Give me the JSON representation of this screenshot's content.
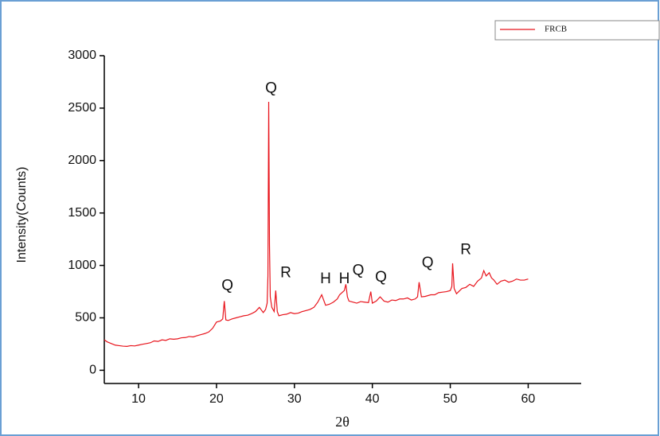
{
  "chart_data": {
    "type": "line",
    "x_label": "2θ",
    "y_label": "Intensity(Counts)",
    "x": [
      5.6,
      6,
      6.5,
      7,
      7.5,
      8,
      8.5,
      9,
      9.5,
      10,
      10.5,
      11,
      11.5,
      12,
      12.5,
      13,
      13.5,
      14,
      14.5,
      15,
      15.5,
      16,
      16.5,
      17,
      17.5,
      18,
      18.5,
      19,
      19.5,
      20,
      20.5,
      20.8,
      21,
      21.2,
      21.5,
      22,
      22.5,
      23,
      23.5,
      24,
      24.5,
      25,
      25.5,
      26,
      26.3,
      26.5,
      26.6,
      26.7,
      26.8,
      26.9,
      27.1,
      27.4,
      27.6,
      27.8,
      28,
      28.5,
      29,
      29.5,
      30,
      30.5,
      31,
      31.5,
      32,
      32.5,
      33,
      33.5,
      34,
      34.5,
      35,
      35.5,
      35.8,
      36.1,
      36.4,
      36.6,
      36.8,
      37,
      37.5,
      38,
      38.5,
      39,
      39.5,
      39.8,
      40,
      40.5,
      41,
      41.5,
      42,
      42.5,
      43,
      43.5,
      44,
      44.5,
      45,
      45.5,
      45.8,
      46,
      46.3,
      46.8,
      47.5,
      48,
      48.5,
      49,
      49.5,
      50,
      50.2,
      50.3,
      50.5,
      50.8,
      51.5,
      52,
      52.5,
      53,
      53.5,
      54,
      54.3,
      54.6,
      55,
      55.3,
      55.6,
      56,
      56.5,
      57,
      57.5,
      58,
      58.5,
      59,
      59.5,
      60
    ],
    "series": [
      {
        "name": "FRCB",
        "color": "#e8141c",
        "values": [
          290,
          270,
          255,
          240,
          235,
          230,
          228,
          235,
          232,
          240,
          248,
          255,
          262,
          280,
          275,
          290,
          285,
          300,
          296,
          300,
          310,
          312,
          322,
          318,
          330,
          340,
          350,
          365,
          400,
          460,
          470,
          490,
          660,
          480,
          475,
          490,
          500,
          510,
          520,
          525,
          540,
          560,
          600,
          550,
          580,
          640,
          900,
          2560,
          1200,
          700,
          600,
          560,
          760,
          560,
          520,
          530,
          535,
          550,
          540,
          545,
          560,
          570,
          580,
          600,
          650,
          720,
          620,
          630,
          650,
          680,
          720,
          740,
          760,
          820,
          700,
          660,
          650,
          640,
          655,
          650,
          645,
          750,
          640,
          660,
          700,
          660,
          650,
          670,
          665,
          680,
          680,
          690,
          670,
          680,
          700,
          840,
          700,
          705,
          720,
          720,
          740,
          745,
          750,
          760,
          800,
          1020,
          780,
          730,
          780,
          790,
          820,
          800,
          850,
          880,
          950,
          900,
          930,
          880,
          860,
          820,
          850,
          860,
          840,
          850,
          870,
          860,
          860,
          870
        ]
      }
    ],
    "xlim": [
      5.6,
      66.8
    ],
    "xticks": [
      10,
      20,
      30,
      40,
      50,
      60
    ],
    "ylim": [
      -126,
      3000
    ],
    "yticks": [
      0,
      500,
      1000,
      1500,
      2000,
      2500,
      3000
    ],
    "annotations": [
      {
        "text": "Q",
        "x": 27.0,
        "y": 2684
      },
      {
        "text": "Q",
        "x": 21.4,
        "y": 805
      },
      {
        "text": "R",
        "x": 28.9,
        "y": 924
      },
      {
        "text": "H",
        "x": 34.0,
        "y": 868
      },
      {
        "text": "H",
        "x": 36.4,
        "y": 868
      },
      {
        "text": "Q",
        "x": 38.2,
        "y": 947
      },
      {
        "text": "Q",
        "x": 41.1,
        "y": 884
      },
      {
        "text": "Q",
        "x": 47.1,
        "y": 1018
      },
      {
        "text": "R",
        "x": 52.0,
        "y": 1145
      }
    ]
  }
}
